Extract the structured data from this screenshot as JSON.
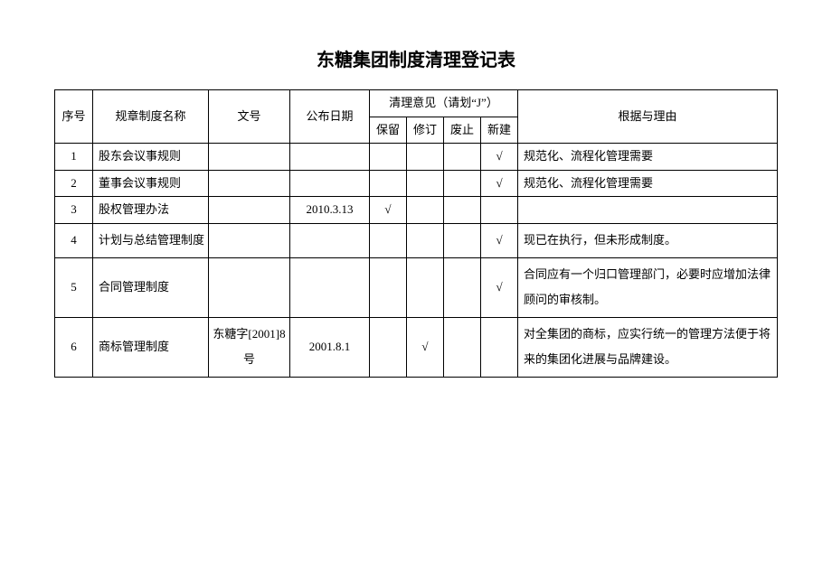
{
  "title": "东糖集团制度清理登记表",
  "headers": {
    "seq": "序号",
    "name": "规章制度名称",
    "docno": "文号",
    "date": "公布日期",
    "opinion_group": "清理意见（请划“J”）",
    "keep": "保留",
    "revise": "修订",
    "abolish": "废止",
    "new": "新建",
    "reason": "根据与理由"
  },
  "check_mark": "√",
  "rows": [
    {
      "seq": "1",
      "name": "股东会议事规则",
      "docno": "",
      "date": "",
      "keep": "",
      "revise": "",
      "abolish": "",
      "newb": "√",
      "reason": "规范化、流程化管理需要"
    },
    {
      "seq": "2",
      "name": "董事会议事规则",
      "docno": "",
      "date": "",
      "keep": "",
      "revise": "",
      "abolish": "",
      "newb": "√",
      "reason": "规范化、流程化管理需要"
    },
    {
      "seq": "3",
      "name": "股权管理办法",
      "docno": "",
      "date": "2010.3.13",
      "keep": "√",
      "revise": "",
      "abolish": "",
      "newb": "",
      "reason": ""
    },
    {
      "seq": "4",
      "name": "计划与总结管理制度",
      "docno": "",
      "date": "",
      "keep": "",
      "revise": "",
      "abolish": "",
      "newb": "√",
      "reason": "现已在执行，但未形成制度。"
    },
    {
      "seq": "5",
      "name": "合同管理制度",
      "docno": "",
      "date": "",
      "keep": "",
      "revise": "",
      "abolish": "",
      "newb": "√",
      "reason": "合同应有一个归口管理部门，必要时应增加法律顾问的审核制。"
    },
    {
      "seq": "6",
      "name": "商标管理制度",
      "docno": "东糖字[2001]8号",
      "date": "2001.8.1",
      "keep": "",
      "revise": "√",
      "abolish": "",
      "newb": "",
      "reason": "对全集团的商标，应实行统一的管理方法便于将来的集团化进展与品牌建设。"
    }
  ]
}
